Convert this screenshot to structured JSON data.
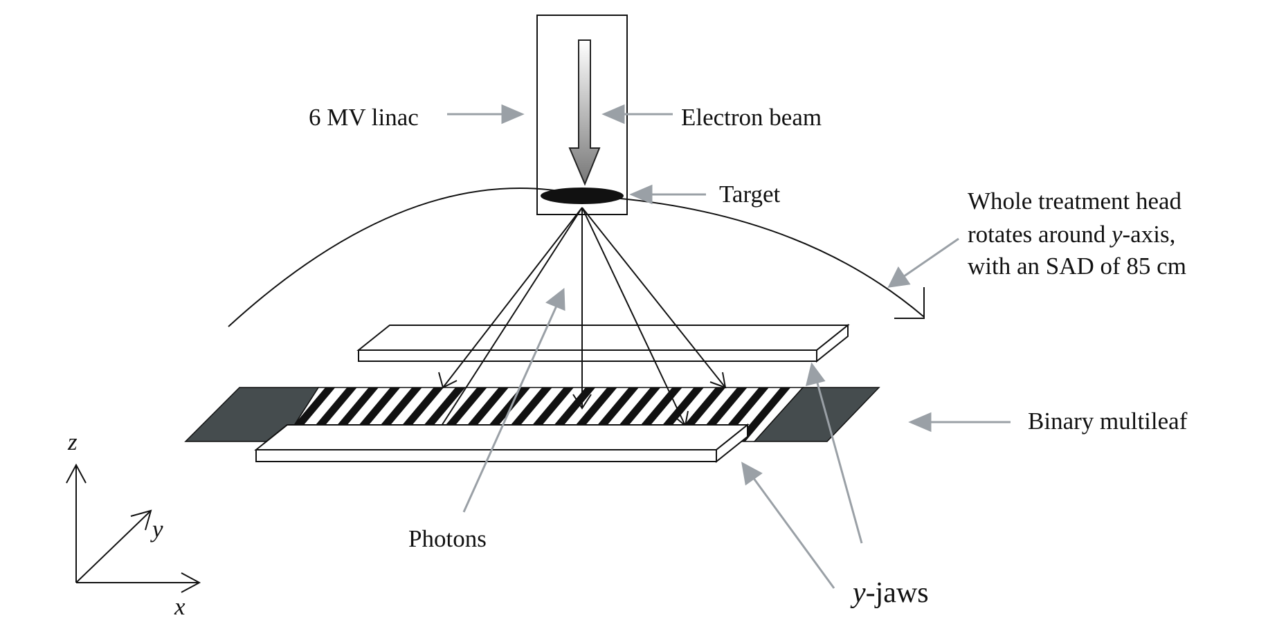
{
  "labels": {
    "linac": "6 MV linac",
    "electron_beam": "Electron beam",
    "target": "Target",
    "rotation_line1": "Whole treatment head",
    "rotation_line2_pre": "rotates around ",
    "rotation_line2_var": "y",
    "rotation_line2_post": "-axis,",
    "rotation_line3": "with an SAD of 85 cm",
    "binary_multileaf": "Binary multileaf",
    "photons": "Photons",
    "yjaws_var": "y",
    "yjaws_post": "-jaws"
  },
  "axes": {
    "z": "z",
    "y": "y",
    "x": "x"
  },
  "colors": {
    "line": "#111111",
    "pointer": "#9aa0a6",
    "leaf_end": "#454c4e",
    "target": "#111111"
  }
}
